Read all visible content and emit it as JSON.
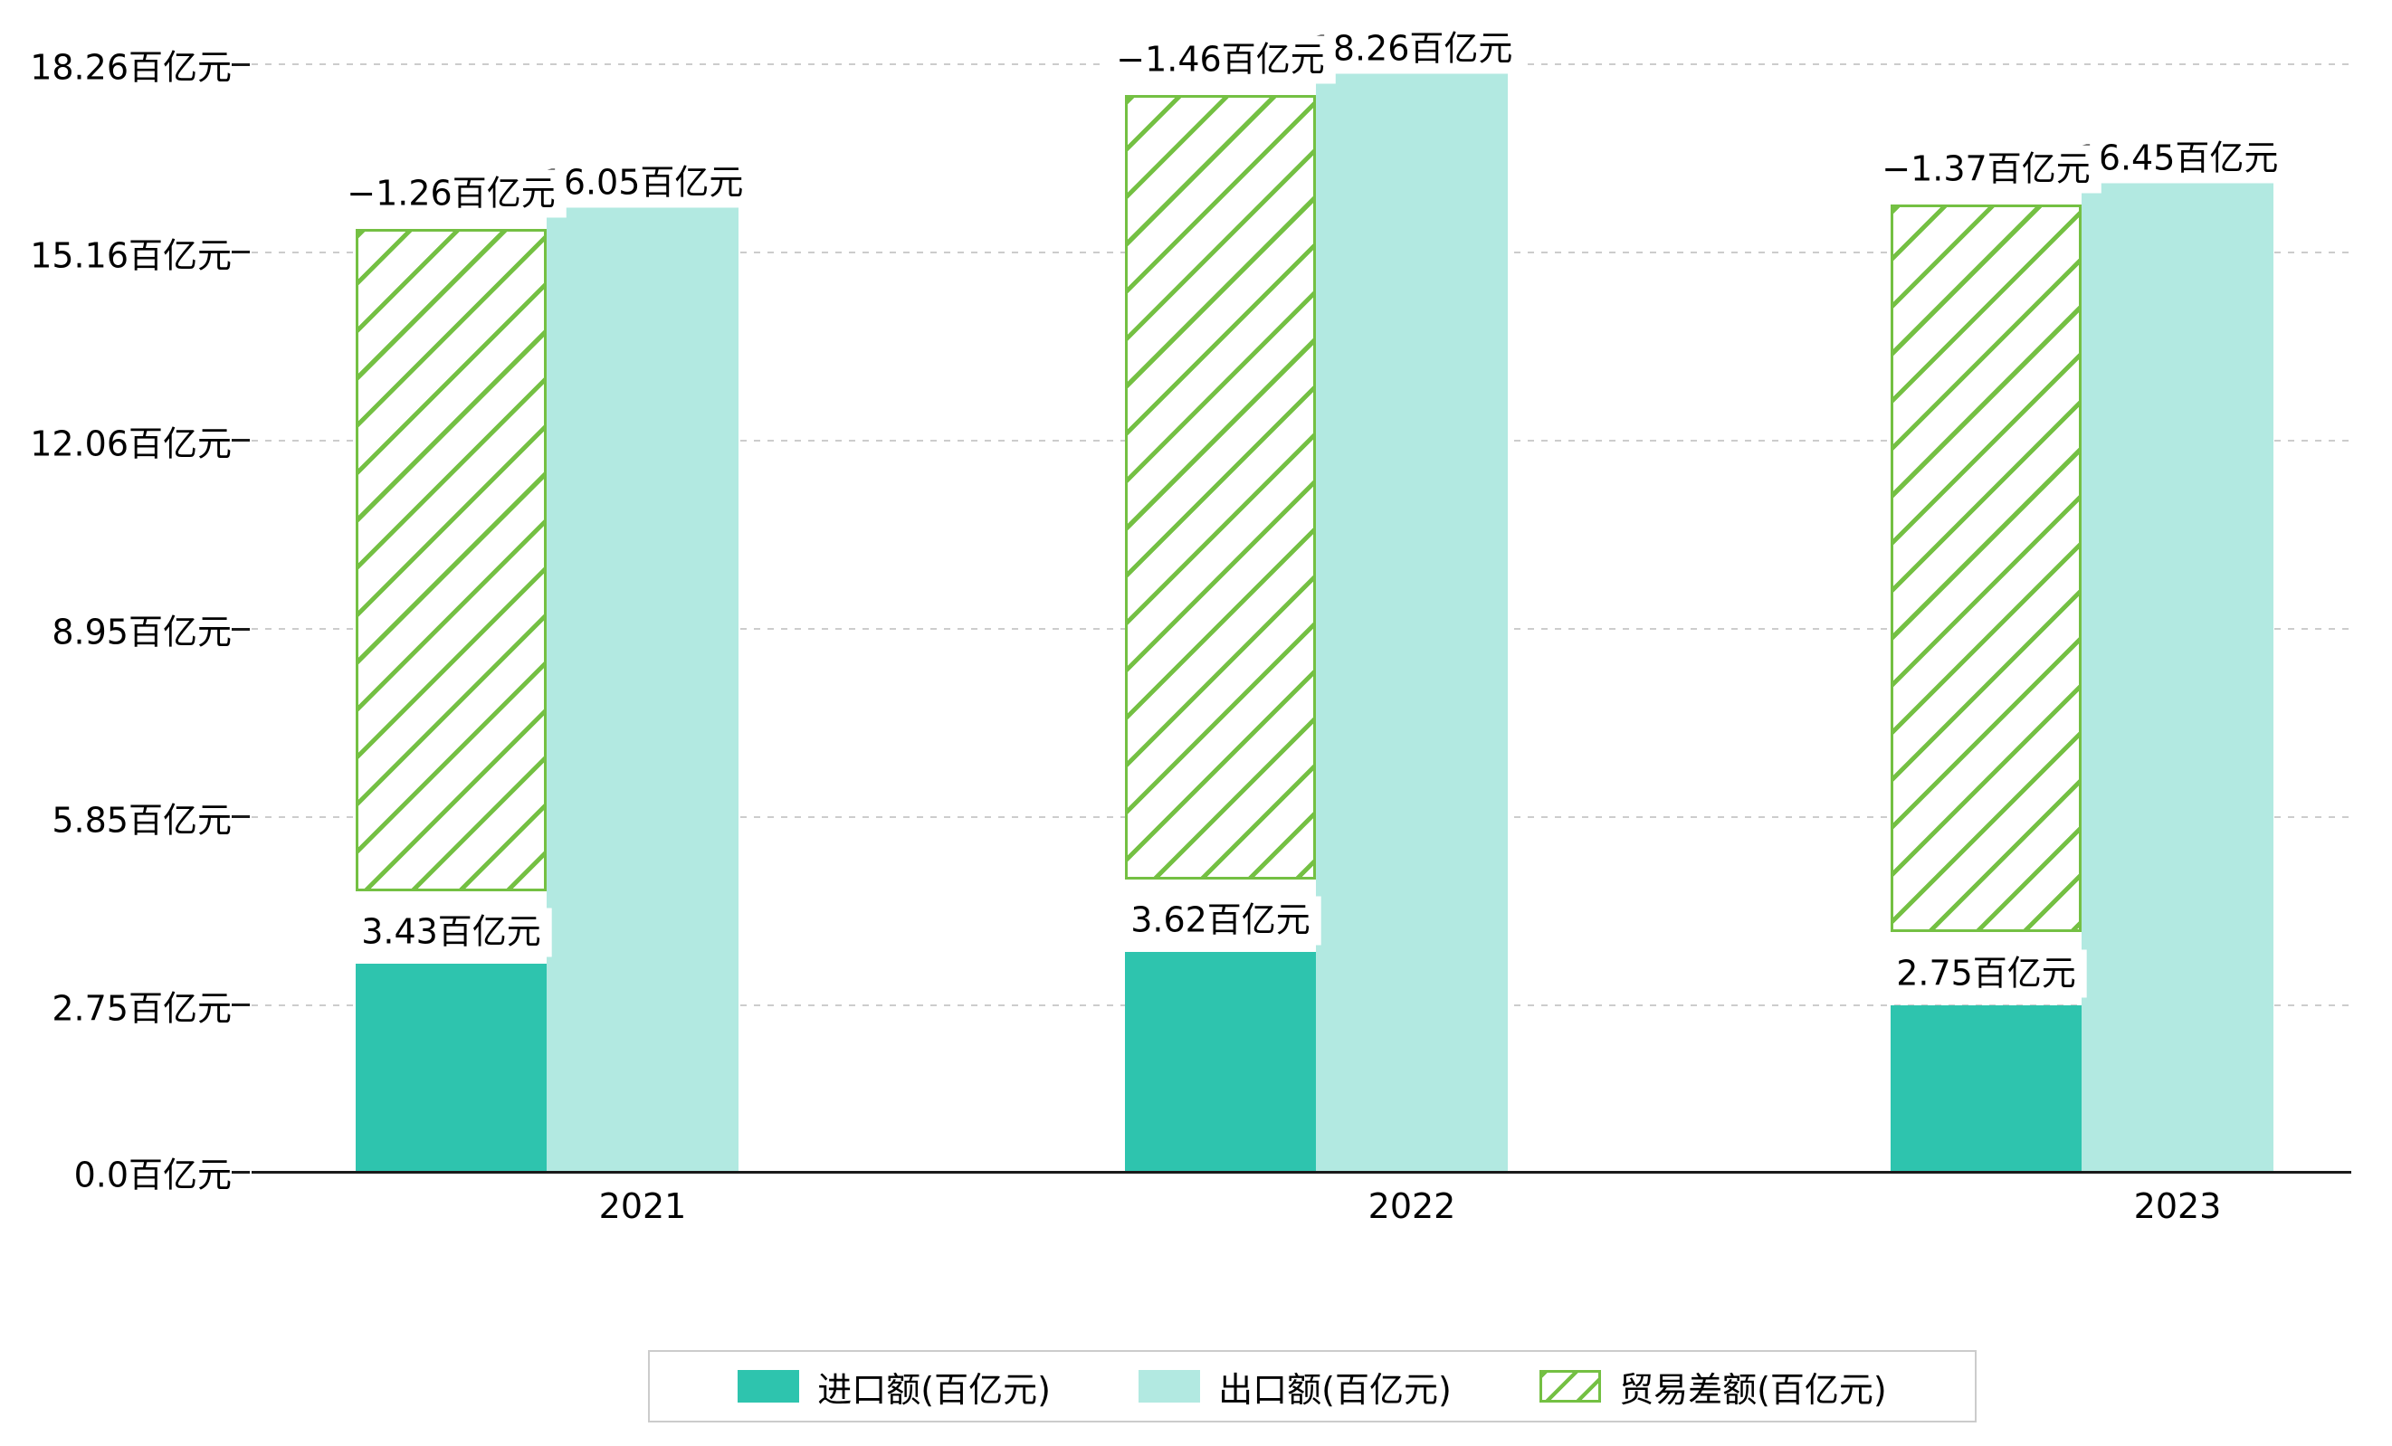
{
  "chart_data": {
    "type": "bar",
    "title": "",
    "xlabel": "",
    "ylabel": "",
    "unit": "百亿元",
    "categories": [
      "2021",
      "2022",
      "2023"
    ],
    "series": [
      {
        "name": "进口额(百亿元)",
        "values": [
          3.43,
          3.62,
          2.75
        ],
        "labels": [
          "3.43百亿元",
          "3.62百亿元",
          "2.75百亿元"
        ],
        "color": "#2ec4ae",
        "style": "solid"
      },
      {
        "name": "出口额(百亿元)",
        "values": [
          16.05,
          18.26,
          16.45
        ],
        "labels": [
          "16.05百亿元",
          "18.26百亿元",
          "16.45百亿元"
        ],
        "color": "#b2e9e1",
        "style": "solid"
      },
      {
        "name": "贸易差额(百亿元)",
        "values": [
          -1.26,
          -1.46,
          -1.37
        ],
        "labels": [
          "−1.26百亿元",
          "−1.46百亿元",
          "−1.37百亿元"
        ],
        "color": "#74c043",
        "style": "hatched"
      }
    ],
    "y_ticks": [
      {
        "value": 0,
        "label": "0.0百亿元"
      },
      {
        "value": 2.75,
        "label": "2.75百亿元"
      },
      {
        "value": 5.85,
        "label": "5.85百亿元"
      },
      {
        "value": 8.95,
        "label": "8.95百亿元"
      },
      {
        "value": 12.06,
        "label": "12.06百亿元"
      },
      {
        "value": 15.16,
        "label": "15.16百亿元"
      },
      {
        "value": 18.26,
        "label": "18.26百亿元"
      }
    ],
    "ylim": [
      0,
      18.26
    ],
    "grid": "dashed horizontal",
    "legend_position": "bottom",
    "legend": [
      "进口额(百亿元)",
      "出口额(百亿元)",
      "贸易差额(百亿元)"
    ]
  }
}
